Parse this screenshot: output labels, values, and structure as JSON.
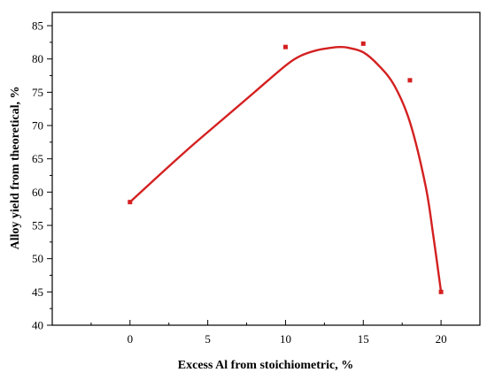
{
  "chart_data": {
    "type": "scatter",
    "title": "",
    "xlabel": "Excess Al from stoichiometric, %",
    "ylabel": "Alloy yield from theoretical, %",
    "xlim": [
      -5,
      22.5
    ],
    "ylim": [
      40,
      87
    ],
    "xticks": [
      0,
      5,
      10,
      15,
      20
    ],
    "xtick_labels": [
      "0",
      "5",
      "10",
      "15",
      "20"
    ],
    "yticks": [
      40,
      45,
      50,
      55,
      60,
      65,
      70,
      75,
      80,
      85
    ],
    "ytick_labels": [
      "40",
      "45",
      "50",
      "55",
      "60",
      "65",
      "70",
      "75",
      "80",
      "85"
    ],
    "grid": false,
    "legend": "none",
    "series": [
      {
        "kind": "points",
        "color": "#d42020",
        "marker": "square",
        "x": [
          0,
          10,
          15,
          18,
          20
        ],
        "y": [
          58.5,
          81.8,
          82.3,
          76.8,
          45.0
        ]
      },
      {
        "kind": "fit-curve",
        "color": "#d42020",
        "x": [
          0,
          2,
          4,
          6,
          8,
          10,
          11,
          12,
          13,
          13.5,
          14,
          15,
          16,
          17,
          18,
          19,
          19.5,
          20
        ],
        "y": [
          58.5,
          62.8,
          67.0,
          71.0,
          75.0,
          79.0,
          80.5,
          81.3,
          81.7,
          81.8,
          81.7,
          81.0,
          79.0,
          76.0,
          70.5,
          61.0,
          53.5,
          45.0
        ]
      }
    ]
  }
}
